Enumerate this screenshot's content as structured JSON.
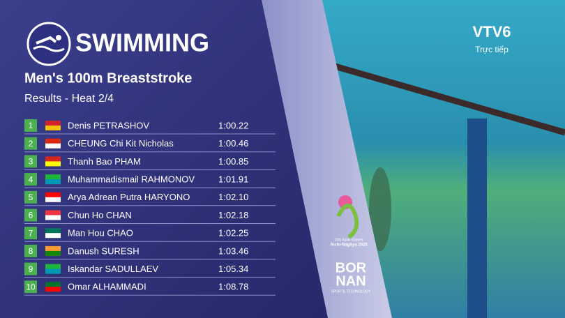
{
  "header": {
    "sport": "SWIMMING",
    "event": "Men's 100m Breaststroke",
    "subtitle": "Results - Heat 2/4"
  },
  "results": [
    {
      "rank": "1",
      "name": "Denis PETRASHOV",
      "time": "1:00.22"
    },
    {
      "rank": "2",
      "name": "CHEUNG Chi Kit Nicholas",
      "time": "1:00.46"
    },
    {
      "rank": "3",
      "name": "Thanh Bao PHAM",
      "time": "1:00.85"
    },
    {
      "rank": "4",
      "name": "Muhammadismail RAHMONOV",
      "time": "1:01.91"
    },
    {
      "rank": "5",
      "name": "Arya Adrean Putra HARYONO",
      "time": "1:02.10"
    },
    {
      "rank": "6",
      "name": "Chun Ho CHAN",
      "time": "1:02.18"
    },
    {
      "rank": "7",
      "name": "Man Hou CHAO",
      "time": "1:02.25"
    },
    {
      "rank": "8",
      "name": "Danush SURESH",
      "time": "1:03.46"
    },
    {
      "rank": "9",
      "name": "Iskandar SADULLAEV",
      "time": "1:05.34"
    },
    {
      "rank": "10",
      "name": "Omar ALHAMMADI",
      "time": "1:08.78"
    }
  ],
  "channel": {
    "logo": "VTV6",
    "status": "Trực tiếp"
  },
  "games_logo": {
    "line1": "20th Asian Games",
    "line2": "Aichi-Nagoya 2026"
  },
  "sponsor": {
    "line1": "BOR",
    "line2": "NAN",
    "tagline": "SPORTS TECHNOLOGY"
  }
}
